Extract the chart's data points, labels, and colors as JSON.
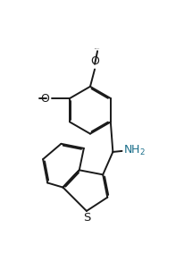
{
  "background_color": "#ffffff",
  "line_color": "#1a1a1a",
  "line_width": 1.4,
  "nh2_color": "#1a6e8a",
  "xlim": [
    0,
    10
  ],
  "ylim": [
    0,
    13
  ],
  "figsize": [
    2.06,
    2.83
  ],
  "dpi": 100,
  "methoxy_top": {
    "label_o": "O",
    "label_ch3": "methoxy"
  },
  "methoxy_left": {
    "label_o": "O",
    "label_ch3": "methoxy"
  }
}
